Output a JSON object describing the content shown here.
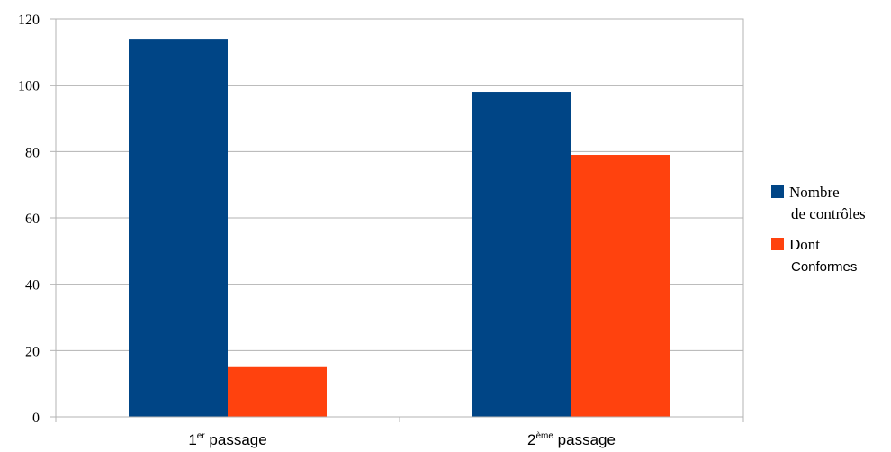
{
  "chart_data": {
    "type": "bar",
    "title": "",
    "xlabel": "",
    "ylabel": "",
    "ylim": [
      0,
      120
    ],
    "yticks": [
      0,
      20,
      40,
      60,
      80,
      100,
      120
    ],
    "grid": true,
    "legend_position": "right",
    "categories": [
      {
        "main": "1",
        "sup": "er",
        "rest": " passage"
      },
      {
        "main": "2",
        "sup": "ème",
        "rest": " passage"
      }
    ],
    "series": [
      {
        "name_line1": "Nombre",
        "name_line2": "de contrôles",
        "color": "#004586",
        "values": [
          114,
          98
        ]
      },
      {
        "name_line1": "Dont",
        "name_line2": "Conformes",
        "color": "#ff420e",
        "values": [
          15,
          79
        ]
      }
    ]
  }
}
